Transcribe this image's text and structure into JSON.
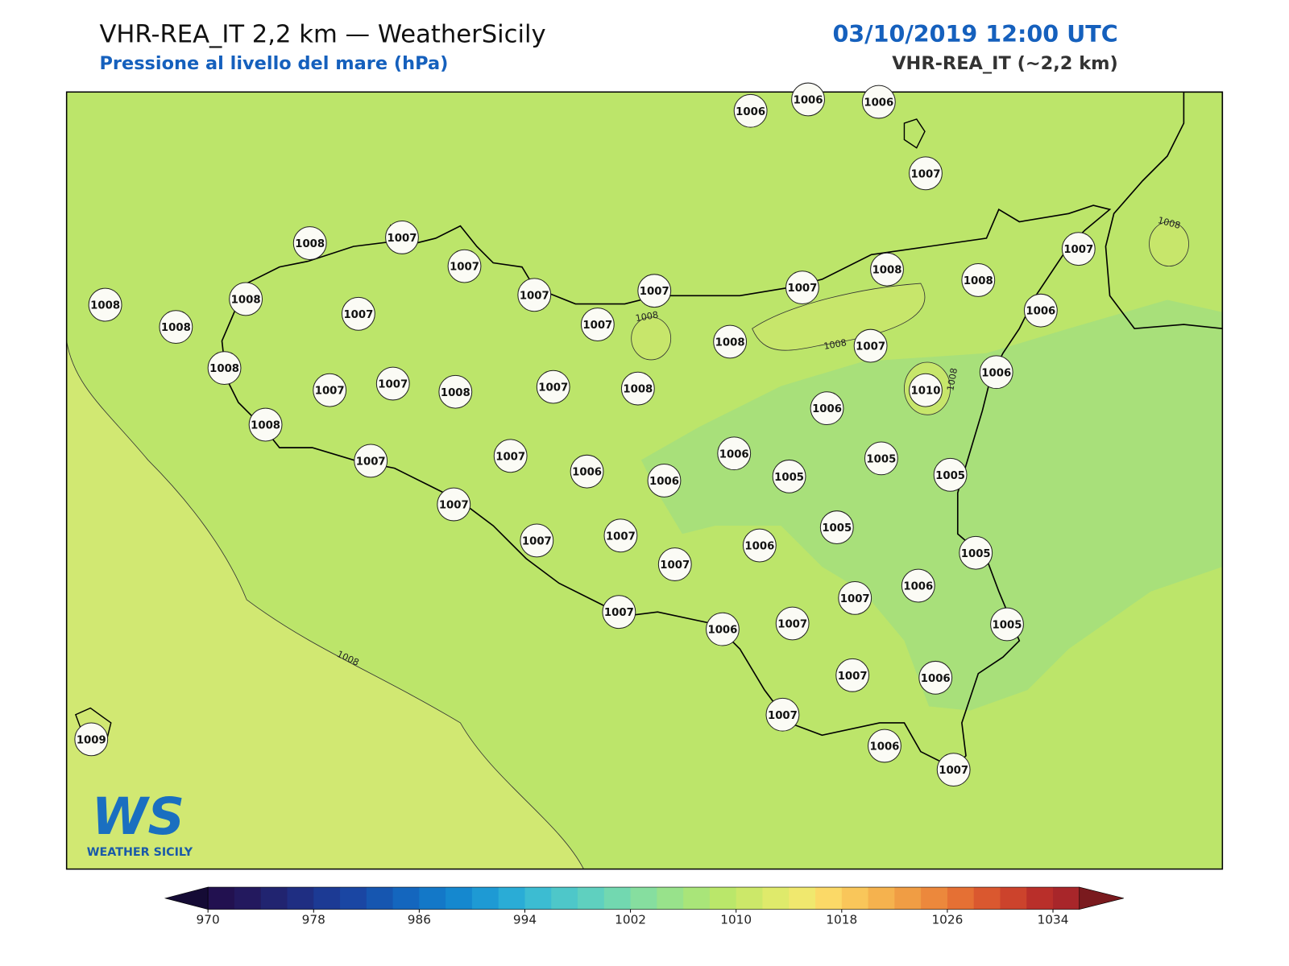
{
  "header": {
    "title": "VHR-REA_IT 2,2 km — WeatherSicily",
    "subtitle": "Pressione al livello del mare (hPa)",
    "date": "03/10/2019 12:00 UTC",
    "model": "VHR-REA_IT (~2,2 km)"
  },
  "stations": [
    1006,
    1006,
    1006,
    1007,
    1008,
    1007,
    1007,
    1007,
    1007,
    1007,
    1008,
    1008,
    1007,
    1008,
    1008,
    1008,
    1007,
    1007,
    1008,
    1007,
    1006,
    1008,
    1007,
    1007,
    1008,
    1007,
    1008,
    1006,
    1010,
    1006,
    1008,
    1007,
    1007,
    1006,
    1006,
    1006,
    1005,
    1005,
    1005,
    1007,
    1007,
    1007,
    1005,
    1006,
    1007,
    1005,
    1006,
    1007,
    1007,
    1006,
    1007,
    1005,
    1007,
    1006,
    1007,
    1006,
    1007,
    1009
  ],
  "contour_labels": [
    1008,
    1008,
    1008,
    1008,
    1008
  ],
  "colorbar": {
    "range": [
      970,
      1036
    ],
    "ticks": [
      970,
      978,
      986,
      994,
      1002,
      1010,
      1018,
      1026,
      1034
    ],
    "colors": [
      "#221150",
      "#23195e",
      "#212470",
      "#1f2e82",
      "#1c3a94",
      "#1a46a3",
      "#1656b0",
      "#1466be",
      "#1378c8",
      "#1588cf",
      "#1e9ad4",
      "#2aacd6",
      "#3cbcd2",
      "#4ec7c9",
      "#5fd0bf",
      "#72d8b0",
      "#86de9f",
      "#98e28b",
      "#a9e579",
      "#bae76a",
      "#cce869",
      "#dfea6b",
      "#f0e86e",
      "#fbd967",
      "#f9c65a",
      "#f5b24e",
      "#f09d44",
      "#ec883c",
      "#e57034",
      "#da582f",
      "#cc432c",
      "#b92f2a",
      "#a8262a"
    ],
    "under": "#150b35",
    "over": "#7a1a1e"
  },
  "logo": {
    "mark": "WS",
    "name": "WEATHER SICILY"
  }
}
